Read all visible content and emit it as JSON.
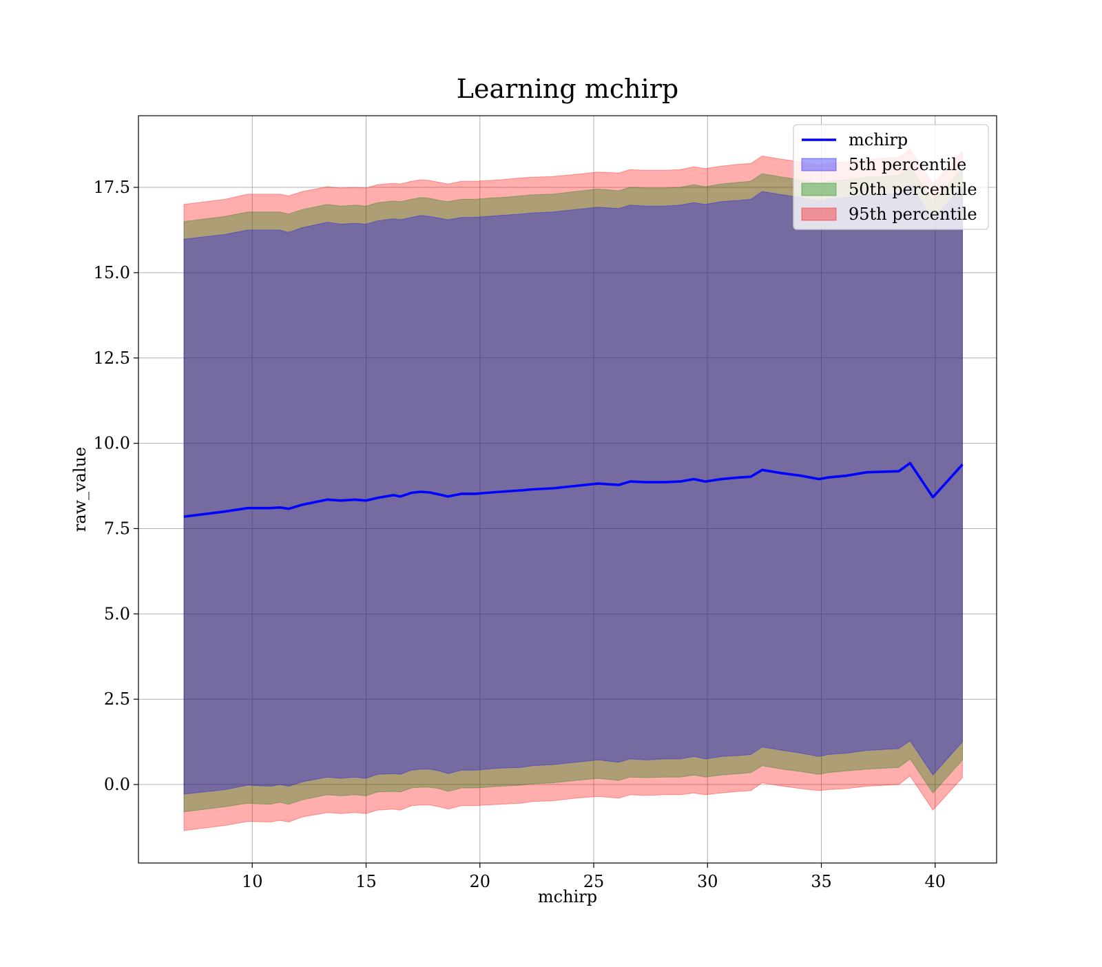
{
  "chart_data": {
    "type": "line",
    "title": "Learning mchirp",
    "xlabel": "mchirp",
    "ylabel": "raw_value",
    "xlim": [
      5.0,
      42.7
    ],
    "ylim": [
      -2.3,
      19.6
    ],
    "xticks": [
      10,
      15,
      20,
      25,
      30,
      35,
      40
    ],
    "xtick_labels": [
      "10",
      "15",
      "20",
      "25",
      "30",
      "35",
      "40"
    ],
    "yticks": [
      0.0,
      2.5,
      5.0,
      7.5,
      10.0,
      12.5,
      15.0,
      17.5
    ],
    "ytick_labels": [
      "0.0",
      "2.5",
      "5.0",
      "7.5",
      "10.0",
      "12.5",
      "15.0",
      "17.5"
    ],
    "grid": true,
    "legend_position": "top-right",
    "legend": [
      "mchirp",
      "5th percentile",
      "50th percentile",
      "95th percentile"
    ],
    "colors": {
      "line": "#0000ff",
      "band_5": "#0000ff",
      "band_50": "#008000",
      "band_95": "#ff0000"
    },
    "x": [
      7.0,
      8.8,
      9.8,
      10.8,
      11.2,
      11.6,
      12.2,
      13.3,
      13.9,
      14.5,
      15.0,
      15.5,
      16.2,
      16.5,
      17.0,
      17.4,
      17.8,
      18.2,
      18.6,
      19.2,
      19.8,
      20.3,
      20.9,
      21.8,
      22.3,
      23.2,
      24.2,
      25.2,
      26.1,
      26.6,
      27.3,
      28.1,
      28.8,
      29.4,
      29.9,
      30.6,
      31.4,
      31.9,
      32.4,
      33.3,
      34.1,
      34.9,
      35.3,
      36.1,
      37.0,
      38.4,
      38.9,
      39.9,
      41.2
    ],
    "series": [
      {
        "name": "mchirp",
        "values": [
          7.85,
          8.0,
          8.1,
          8.1,
          8.12,
          8.08,
          8.2,
          8.35,
          8.32,
          8.35,
          8.32,
          8.4,
          8.48,
          8.44,
          8.55,
          8.58,
          8.56,
          8.5,
          8.44,
          8.52,
          8.52,
          8.55,
          8.58,
          8.62,
          8.65,
          8.68,
          8.75,
          8.82,
          8.78,
          8.88,
          8.86,
          8.86,
          8.88,
          8.95,
          8.88,
          8.95,
          9.0,
          9.02,
          9.22,
          9.12,
          9.05,
          8.95,
          9.0,
          9.05,
          9.15,
          9.18,
          9.42,
          8.42,
          9.38
        ]
      }
    ],
    "bands": [
      {
        "name": "95th percentile",
        "lower": [
          -1.35,
          -1.2,
          -1.08,
          -1.1,
          -1.05,
          -1.1,
          -0.95,
          -0.82,
          -0.85,
          -0.82,
          -0.85,
          -0.75,
          -0.72,
          -0.75,
          -0.62,
          -0.6,
          -0.6,
          -0.65,
          -0.72,
          -0.62,
          -0.62,
          -0.6,
          -0.58,
          -0.55,
          -0.5,
          -0.48,
          -0.4,
          -0.35,
          -0.4,
          -0.3,
          -0.32,
          -0.3,
          -0.3,
          -0.25,
          -0.3,
          -0.25,
          -0.2,
          -0.18,
          0.05,
          -0.05,
          -0.12,
          -0.18,
          -0.15,
          -0.12,
          -0.05,
          0.0,
          0.25,
          -0.75,
          0.2
        ],
        "upper": [
          17.0,
          17.15,
          17.3,
          17.3,
          17.3,
          17.25,
          17.38,
          17.52,
          17.48,
          17.5,
          17.48,
          17.58,
          17.62,
          17.6,
          17.68,
          17.72,
          17.7,
          17.65,
          17.6,
          17.68,
          17.68,
          17.7,
          17.72,
          17.78,
          17.8,
          17.82,
          17.88,
          17.95,
          17.92,
          18.02,
          18.0,
          18.0,
          18.02,
          18.1,
          18.05,
          18.12,
          18.18,
          18.2,
          18.42,
          18.32,
          18.25,
          18.15,
          18.2,
          18.25,
          18.32,
          18.38,
          18.62,
          17.6,
          18.55
        ]
      },
      {
        "name": "50th percentile",
        "lower": [
          -0.8,
          -0.65,
          -0.55,
          -0.58,
          -0.52,
          -0.58,
          -0.45,
          -0.3,
          -0.33,
          -0.3,
          -0.33,
          -0.22,
          -0.2,
          -0.22,
          -0.1,
          -0.08,
          -0.08,
          -0.12,
          -0.2,
          -0.1,
          -0.1,
          -0.08,
          -0.05,
          -0.02,
          0.02,
          0.05,
          0.12,
          0.18,
          0.12,
          0.22,
          0.2,
          0.22,
          0.22,
          0.28,
          0.22,
          0.28,
          0.32,
          0.35,
          0.55,
          0.45,
          0.38,
          0.3,
          0.35,
          0.4,
          0.45,
          0.5,
          0.75,
          -0.25,
          0.72
        ],
        "upper": [
          16.5,
          16.65,
          16.78,
          16.78,
          16.78,
          16.72,
          16.85,
          17.0,
          16.95,
          16.98,
          16.95,
          17.05,
          17.1,
          17.08,
          17.15,
          17.2,
          17.18,
          17.12,
          17.08,
          17.15,
          17.15,
          17.18,
          17.2,
          17.25,
          17.28,
          17.3,
          17.38,
          17.45,
          17.4,
          17.5,
          17.48,
          17.48,
          17.5,
          17.58,
          17.52,
          17.6,
          17.65,
          17.68,
          17.9,
          17.8,
          17.72,
          17.62,
          17.68,
          17.72,
          17.8,
          17.85,
          18.1,
          17.1,
          18.05
        ]
      },
      {
        "name": "5th percentile",
        "lower": [
          -0.28,
          -0.15,
          -0.02,
          -0.05,
          0.0,
          -0.05,
          0.08,
          0.22,
          0.18,
          0.22,
          0.18,
          0.3,
          0.32,
          0.3,
          0.42,
          0.45,
          0.45,
          0.4,
          0.32,
          0.42,
          0.42,
          0.45,
          0.48,
          0.5,
          0.55,
          0.58,
          0.65,
          0.72,
          0.65,
          0.75,
          0.72,
          0.75,
          0.75,
          0.82,
          0.75,
          0.82,
          0.85,
          0.88,
          1.1,
          1.0,
          0.92,
          0.82,
          0.88,
          0.92,
          1.0,
          1.05,
          1.28,
          0.28,
          1.25
        ],
        "upper": [
          15.98,
          16.12,
          16.25,
          16.25,
          16.25,
          16.18,
          16.32,
          16.48,
          16.42,
          16.45,
          16.42,
          16.52,
          16.58,
          16.55,
          16.62,
          16.68,
          16.65,
          16.6,
          16.55,
          16.62,
          16.62,
          16.65,
          16.68,
          16.72,
          16.75,
          16.78,
          16.85,
          16.92,
          16.88,
          16.98,
          16.95,
          16.95,
          16.98,
          17.05,
          17.0,
          17.08,
          17.12,
          17.15,
          17.38,
          17.28,
          17.2,
          17.1,
          17.15,
          17.2,
          17.28,
          17.32,
          17.58,
          16.58,
          17.52
        ]
      }
    ]
  }
}
